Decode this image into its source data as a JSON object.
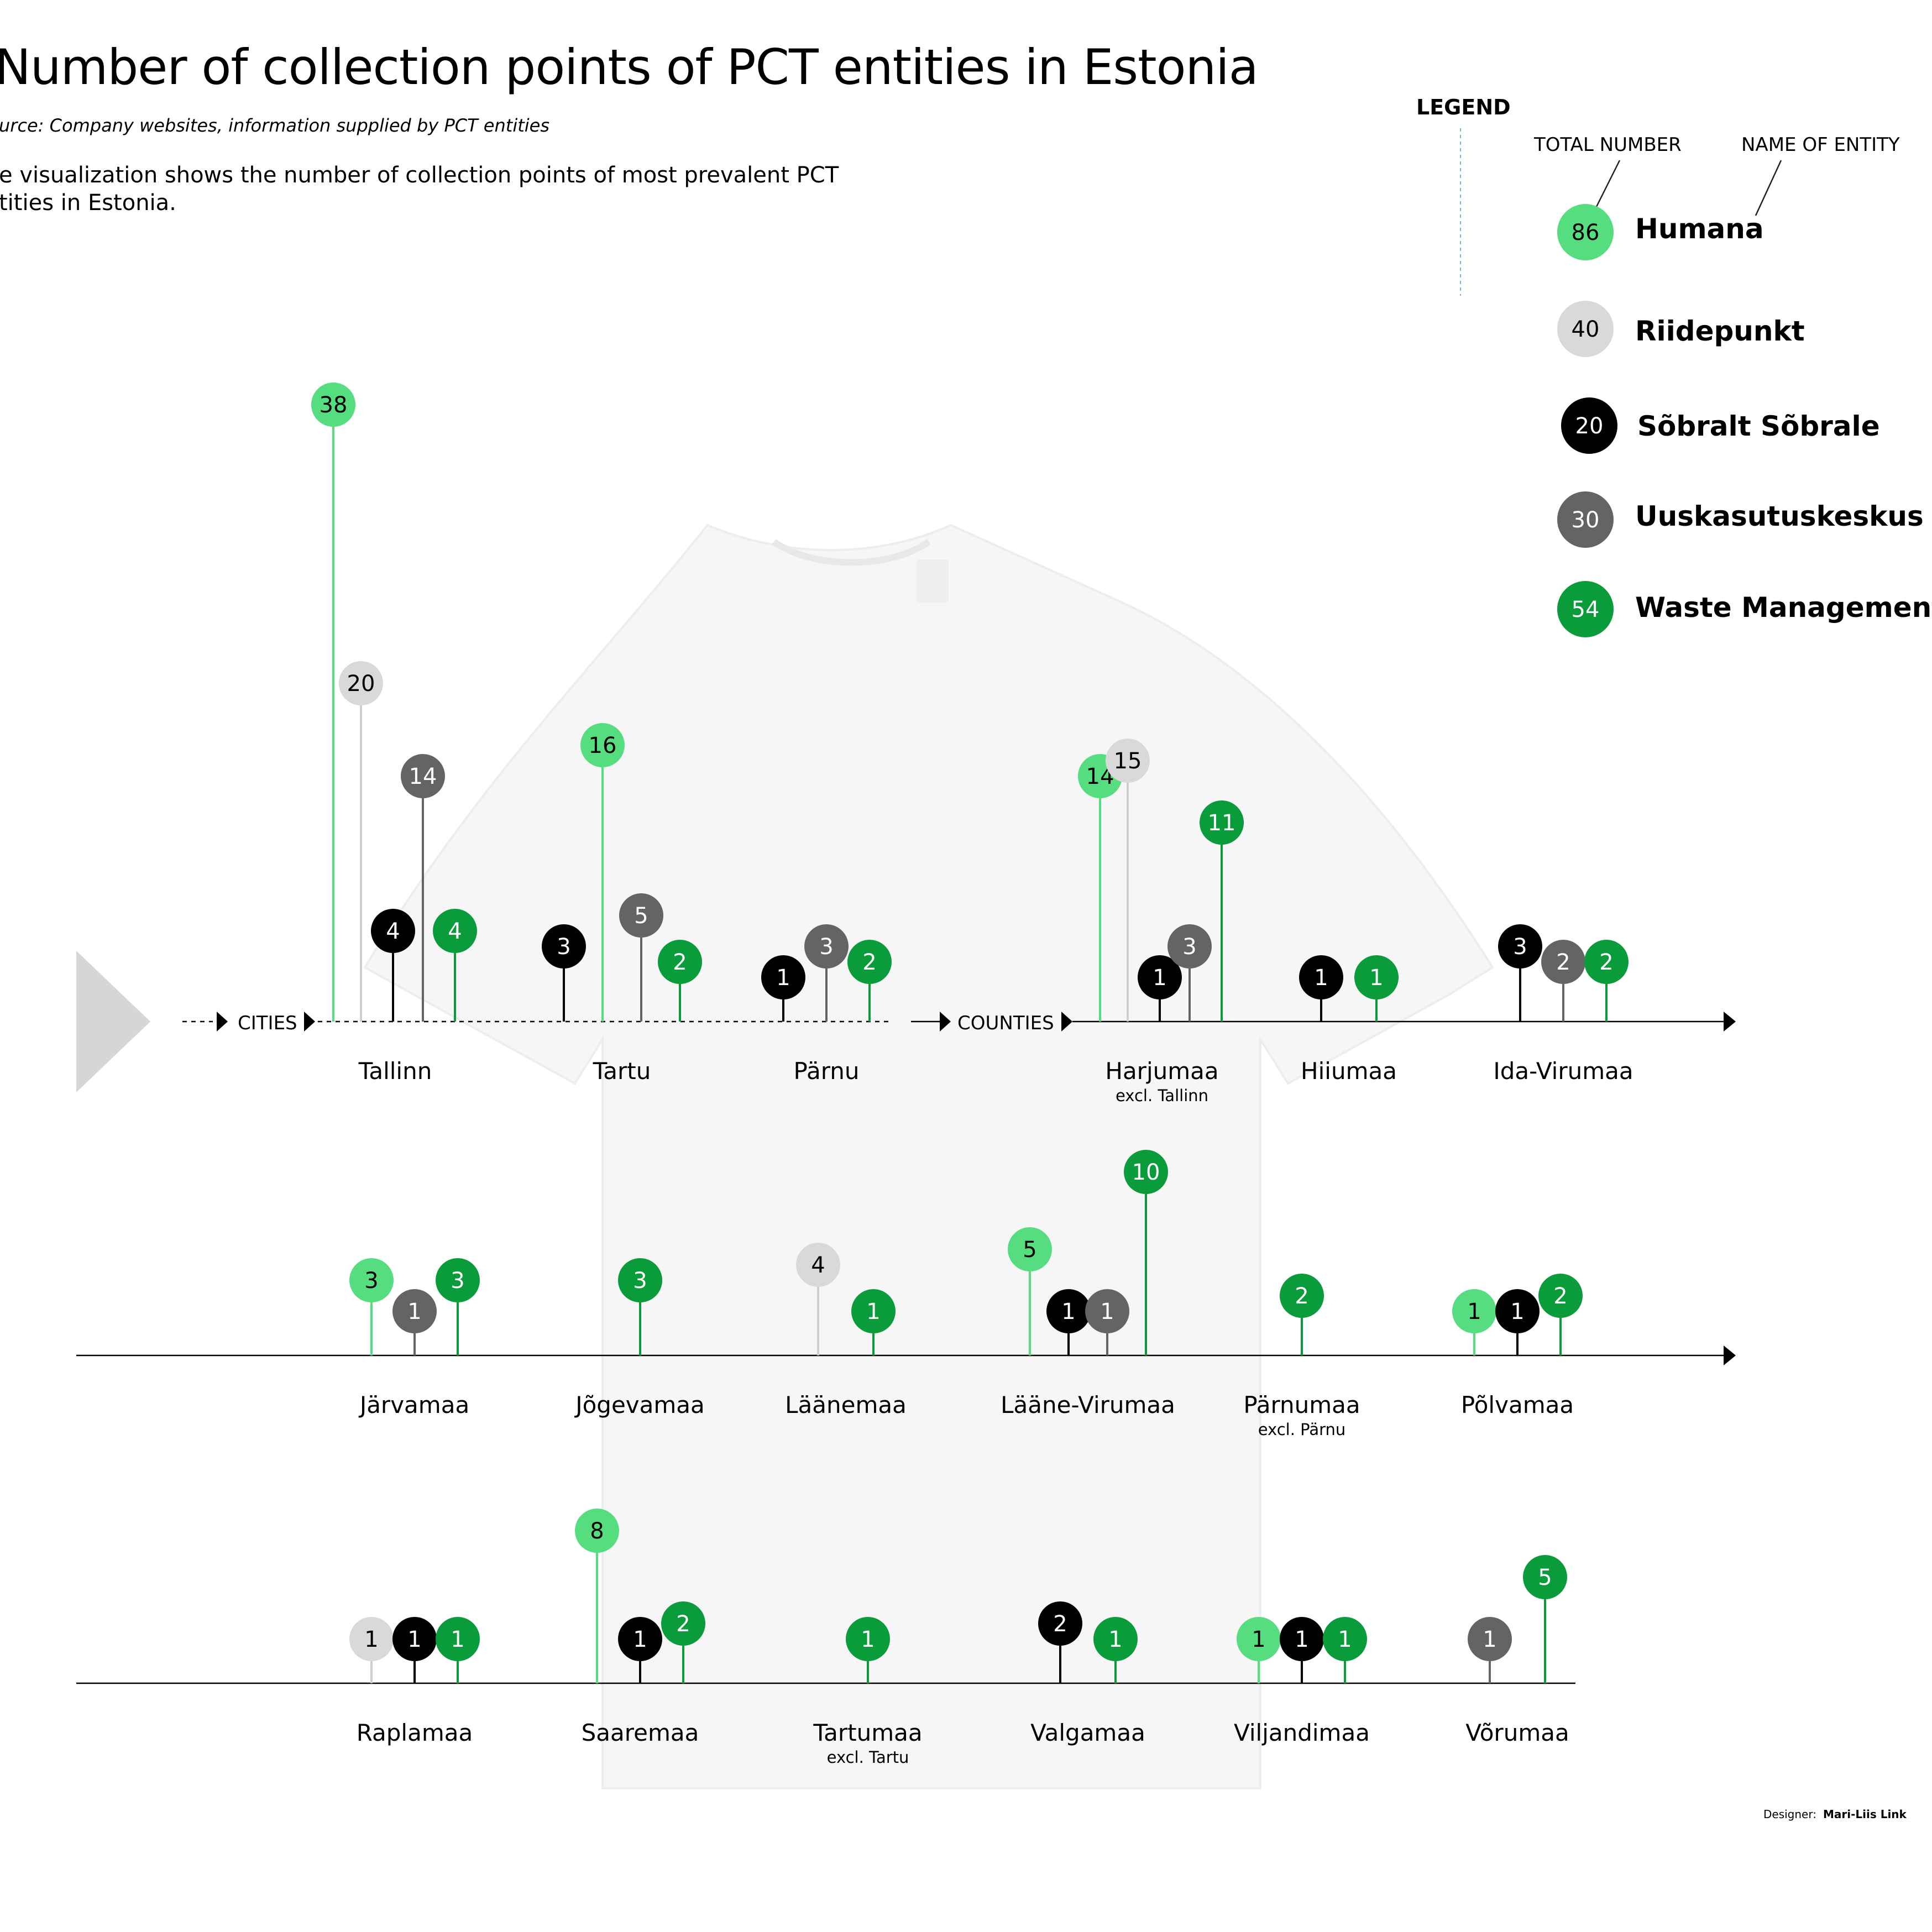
{
  "title": "Number of collection points of PCT entities in Estonia",
  "source": "urce: Company websites, information supplied by PCT entities",
  "description": "e visualization shows the number of collection points of most prevalent PCT\ntities in Estonia.",
  "legend": {
    "title": "LEGEND",
    "total_number_label": "TOTAL NUMBER",
    "name_of_entity_label": "NAME OF ENTITY",
    "entities": [
      {
        "key": "humana",
        "name": "Humana",
        "total": 86,
        "color": "#55dd7f",
        "text_color": "#000000"
      },
      {
        "key": "riidepunkt",
        "name": "Riidepunkt",
        "total": 40,
        "color": "#d9d9d9",
        "text_color": "#000000"
      },
      {
        "key": "sobralt",
        "name": "Sõbralt Sõbrale",
        "total": 20,
        "color": "#000000",
        "text_color": "#ffffff"
      },
      {
        "key": "uuskasutus",
        "name": "Uuskasutuskeskus",
        "total": 30,
        "color": "#646464",
        "text_color": "#ffffff"
      },
      {
        "key": "waste",
        "name": "Waste Management",
        "total": 54,
        "color": "#0a9b3a",
        "text_color": "#ffffff"
      }
    ]
  },
  "axis_labels": {
    "cities": "CITIES",
    "counties": "COUNTIES"
  },
  "chart_data": {
    "type": "lollipop",
    "title": "Number of collection points of PCT entities in Estonia",
    "series_order": [
      "humana",
      "riidepunkt",
      "sobralt",
      "uuskasutus",
      "waste"
    ],
    "rows": [
      {
        "groups": [
          {
            "name": "Tallinn",
            "kind": "city",
            "values": [
              {
                "entity": "humana",
                "value": 38
              },
              {
                "entity": "riidepunkt",
                "value": 20
              },
              {
                "entity": "sobralt",
                "value": 4
              },
              {
                "entity": "uuskasutus",
                "value": 14
              },
              {
                "entity": "waste",
                "value": 4
              }
            ]
          },
          {
            "name": "Tartu",
            "kind": "city",
            "values": [
              {
                "entity": "sobralt",
                "value": 3
              },
              {
                "entity": "humana",
                "value": 16
              },
              {
                "entity": "uuskasutus",
                "value": 5
              },
              {
                "entity": "waste",
                "value": 2
              }
            ]
          },
          {
            "name": "Pärnu",
            "kind": "city",
            "values": [
              {
                "entity": "sobralt",
                "value": 1
              },
              {
                "entity": "uuskasutus",
                "value": 3
              },
              {
                "entity": "waste",
                "value": 2
              }
            ]
          },
          {
            "name": "Harjumaa",
            "note": "excl. Tallinn",
            "kind": "county",
            "values": [
              {
                "entity": "humana",
                "value": 14
              },
              {
                "entity": "riidepunkt",
                "value": 15
              },
              {
                "entity": "sobralt",
                "value": 1
              },
              {
                "entity": "uuskasutus",
                "value": 3
              },
              {
                "entity": "waste",
                "value": 11
              }
            ]
          },
          {
            "name": "Hiiumaa",
            "kind": "county",
            "values": [
              {
                "entity": "sobralt",
                "value": 1
              },
              {
                "entity": "waste",
                "value": 1
              }
            ]
          },
          {
            "name": "Ida-Virumaa",
            "kind": "county",
            "values": [
              {
                "entity": "sobralt",
                "value": 3
              },
              {
                "entity": "uuskasutus",
                "value": 2
              },
              {
                "entity": "waste",
                "value": 2
              }
            ]
          }
        ]
      },
      {
        "groups": [
          {
            "name": "Järvamaa",
            "kind": "county",
            "values": [
              {
                "entity": "humana",
                "value": 3
              },
              {
                "entity": "uuskasutus",
                "value": 1
              },
              {
                "entity": "waste",
                "value": 3
              }
            ]
          },
          {
            "name": "Jõgevamaa",
            "kind": "county",
            "values": [
              {
                "entity": "waste",
                "value": 3
              }
            ]
          },
          {
            "name": "Läänemaa",
            "kind": "county",
            "values": [
              {
                "entity": "riidepunkt",
                "value": 4
              },
              {
                "entity": "waste",
                "value": 1
              }
            ]
          },
          {
            "name": "Lääne-Virumaa",
            "kind": "county",
            "values": [
              {
                "entity": "humana",
                "value": 5
              },
              {
                "entity": "sobralt",
                "value": 1
              },
              {
                "entity": "uuskasutus",
                "value": 1
              },
              {
                "entity": "waste",
                "value": 10
              }
            ]
          },
          {
            "name": "Pärnumaa",
            "note": "excl. Pärnu",
            "kind": "county",
            "values": [
              {
                "entity": "waste",
                "value": 2
              }
            ]
          },
          {
            "name": "Põlvamaa",
            "kind": "county",
            "values": [
              {
                "entity": "humana",
                "value": 1
              },
              {
                "entity": "sobralt",
                "value": 1
              },
              {
                "entity": "waste",
                "value": 2
              }
            ]
          }
        ]
      },
      {
        "groups": [
          {
            "name": "Raplamaa",
            "kind": "county",
            "values": [
              {
                "entity": "riidepunkt",
                "value": 1
              },
              {
                "entity": "sobralt",
                "value": 1
              },
              {
                "entity": "waste",
                "value": 1
              }
            ]
          },
          {
            "name": "Saaremaa",
            "kind": "county",
            "values": [
              {
                "entity": "humana",
                "value": 8
              },
              {
                "entity": "sobralt",
                "value": 1
              },
              {
                "entity": "waste",
                "value": 2
              }
            ]
          },
          {
            "name": "Tartumaa",
            "note": "excl. Tartu",
            "kind": "county",
            "values": [
              {
                "entity": "waste",
                "value": 1
              }
            ]
          },
          {
            "name": "Valgamaa",
            "kind": "county",
            "values": [
              {
                "entity": "sobralt",
                "value": 2
              },
              {
                "entity": "waste",
                "value": 1
              }
            ]
          },
          {
            "name": "Viljandimaa",
            "kind": "county",
            "values": [
              {
                "entity": "humana",
                "value": 1
              },
              {
                "entity": "sobralt",
                "value": 1
              },
              {
                "entity": "waste",
                "value": 1
              }
            ]
          },
          {
            "name": "Võrumaa",
            "kind": "county",
            "values": [
              {
                "entity": "uuskasutus",
                "value": 1
              },
              {
                "entity": "waste",
                "value": 5
              }
            ]
          }
        ]
      }
    ]
  },
  "designer_label": "Designer:",
  "designer_name": "Mari-Liis Link"
}
